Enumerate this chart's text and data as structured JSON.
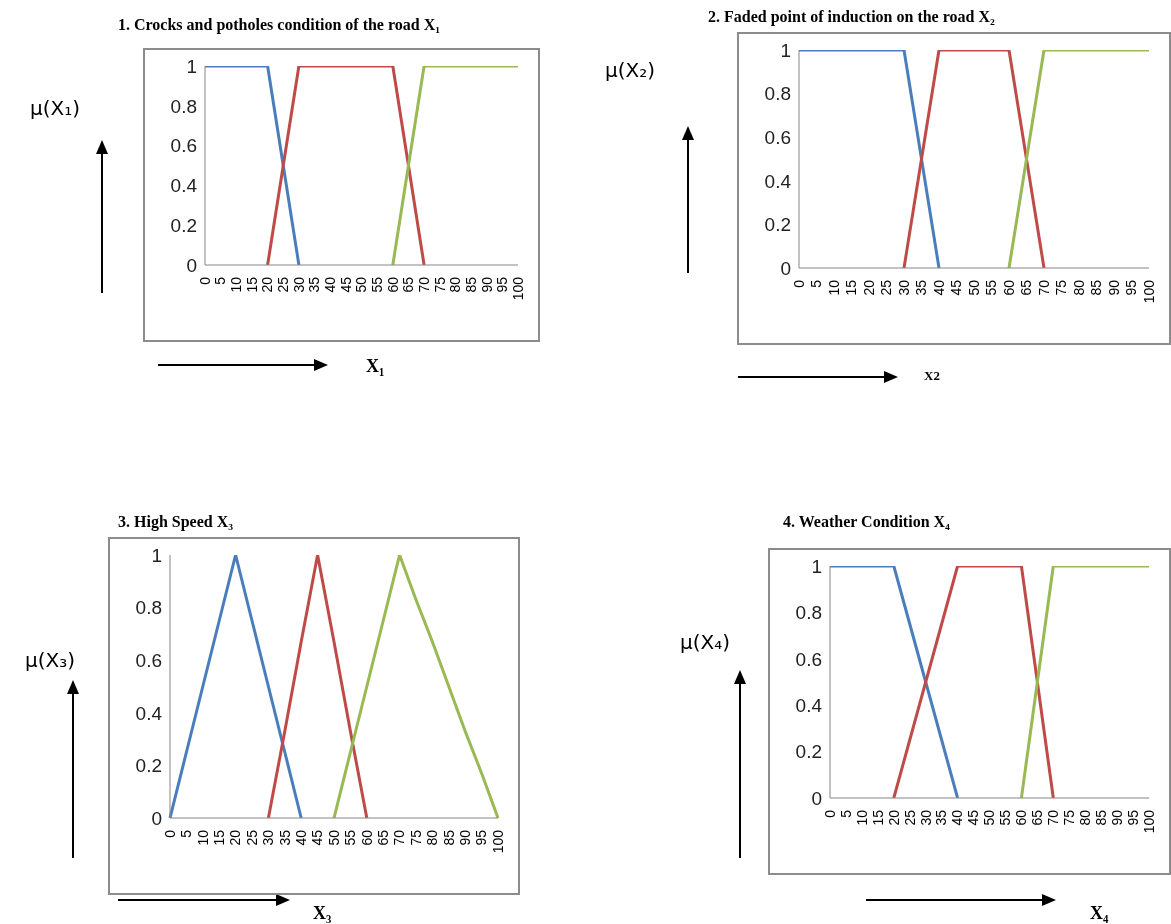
{
  "chart_data": [
    {
      "type": "line",
      "title": "1.  Crocks and potholes condition of the road X₁",
      "ylabel": "μ(X₁)",
      "xlabel": "X₁",
      "categories": [
        "0",
        "5",
        "10",
        "15",
        "20",
        "25",
        "30",
        "35",
        "40",
        "45",
        "50",
        "55",
        "60",
        "65",
        "70",
        "75",
        "80",
        "85",
        "90",
        "95",
        "100"
      ],
      "ylim": [
        0,
        1
      ],
      "yticks": [
        0,
        0.2,
        0.4,
        0.6,
        0.8,
        1
      ],
      "grid": false,
      "legend": false,
      "marker": "none",
      "series": [
        {
          "color": "#4a7ebb",
          "values": [
            1,
            1,
            1,
            1,
            1,
            0.5,
            0,
            null,
            null,
            null,
            null,
            null,
            null,
            null,
            null,
            null,
            null,
            null,
            null,
            null,
            null
          ]
        },
        {
          "color": "#be4b48",
          "values": [
            null,
            null,
            null,
            null,
            0,
            0.5,
            1,
            1,
            1,
            1,
            1,
            1,
            1,
            0.5,
            0,
            null,
            null,
            null,
            null,
            null,
            null
          ]
        },
        {
          "color": "#98b954",
          "values": [
            null,
            null,
            null,
            null,
            null,
            null,
            null,
            null,
            null,
            null,
            null,
            null,
            0,
            0.5,
            1,
            1,
            1,
            1,
            1,
            1,
            1
          ]
        }
      ]
    },
    {
      "type": "line",
      "title": "2.  Faded point of induction on the  road X₂",
      "ylabel": "μ(X₂)",
      "xlabel": "X2",
      "categories": [
        "0",
        "5",
        "10",
        "15",
        "20",
        "25",
        "30",
        "35",
        "40",
        "45",
        "50",
        "55",
        "60",
        "65",
        "70",
        "75",
        "80",
        "85",
        "90",
        "95",
        "100"
      ],
      "ylim": [
        0,
        1
      ],
      "yticks": [
        0,
        0.2,
        0.4,
        0.6,
        0.8,
        1
      ],
      "grid": false,
      "legend": false,
      "marker": "none",
      "series": [
        {
          "color": "#4a7ebb",
          "values": [
            1,
            1,
            1,
            1,
            1,
            1,
            1,
            0.5,
            0,
            null,
            null,
            null,
            null,
            null,
            null,
            null,
            null,
            null,
            null,
            null,
            null
          ]
        },
        {
          "color": "#be4b48",
          "values": [
            null,
            null,
            null,
            null,
            null,
            null,
            0,
            0.5,
            1,
            1,
            1,
            1,
            1,
            0.5,
            0,
            null,
            null,
            null,
            null,
            null,
            null
          ]
        },
        {
          "color": "#98b954",
          "values": [
            null,
            null,
            null,
            null,
            null,
            null,
            null,
            null,
            null,
            null,
            null,
            null,
            0,
            0.5,
            1,
            1,
            1,
            1,
            1,
            1,
            1
          ]
        }
      ]
    },
    {
      "type": "line",
      "title": "3.  High Speed X₃",
      "ylabel": "μ(X₃)",
      "xlabel": "X₃",
      "categories": [
        "0",
        "5",
        "10",
        "15",
        "20",
        "25",
        "30",
        "35",
        "40",
        "45",
        "50",
        "55",
        "60",
        "65",
        "70",
        "75",
        "80",
        "85",
        "90",
        "95",
        "100"
      ],
      "ylim": [
        0,
        1
      ],
      "yticks": [
        0,
        0.2,
        0.4,
        0.6,
        0.8,
        1
      ],
      "grid": false,
      "legend": false,
      "marker": "none",
      "series": [
        {
          "color": "#4a7ebb",
          "values": [
            0,
            0.25,
            0.5,
            0.75,
            1,
            0.75,
            0.5,
            0.25,
            0,
            null,
            null,
            null,
            null,
            null,
            null,
            null,
            null,
            null,
            null,
            null,
            null
          ]
        },
        {
          "color": "#be4b48",
          "values": [
            null,
            null,
            null,
            null,
            null,
            null,
            0,
            0.33,
            0.67,
            1,
            0.67,
            0.33,
            0,
            null,
            null,
            null,
            null,
            null,
            null,
            null,
            null
          ]
        },
        {
          "color": "#98b954",
          "values": [
            null,
            null,
            null,
            null,
            null,
            null,
            null,
            null,
            null,
            null,
            0,
            0.25,
            0.5,
            0.75,
            1,
            0.83,
            0.67,
            0.5,
            0.33,
            0.17,
            0
          ]
        }
      ]
    },
    {
      "type": "line",
      "title": "4.  Weather Condition X₄",
      "ylabel": "μ(X₄)",
      "xlabel": "X₄",
      "categories": [
        "0",
        "5",
        "10",
        "15",
        "20",
        "25",
        "30",
        "35",
        "40",
        "45",
        "50",
        "55",
        "60",
        "65",
        "70",
        "75",
        "80",
        "85",
        "90",
        "95",
        "100"
      ],
      "ylim": [
        0,
        1
      ],
      "yticks": [
        0,
        0.2,
        0.4,
        0.6,
        0.8,
        1
      ],
      "grid": false,
      "legend": false,
      "marker": "none",
      "series": [
        {
          "color": "#4a7ebb",
          "values": [
            1,
            1,
            1,
            1,
            1,
            0.75,
            0.5,
            0.25,
            0,
            null,
            null,
            null,
            null,
            null,
            null,
            null,
            null,
            null,
            null,
            null,
            null
          ]
        },
        {
          "color": "#be4b48",
          "values": [
            null,
            null,
            null,
            null,
            0,
            0.25,
            0.5,
            0.75,
            1,
            1,
            1,
            1,
            1,
            0.5,
            0,
            null,
            null,
            null,
            null,
            null,
            null
          ]
        },
        {
          "color": "#98b954",
          "values": [
            null,
            null,
            null,
            null,
            null,
            null,
            null,
            null,
            null,
            null,
            null,
            null,
            0,
            0.5,
            1,
            1,
            1,
            1,
            1,
            1,
            1
          ]
        }
      ]
    }
  ]
}
